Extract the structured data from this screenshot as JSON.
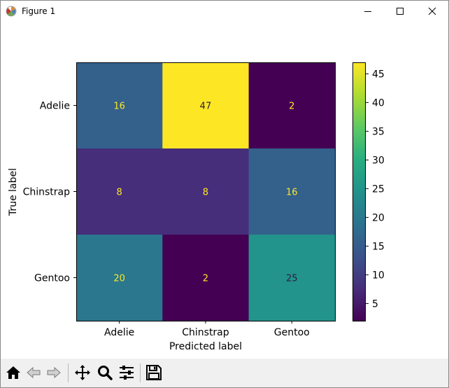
{
  "window": {
    "title": "Figure 1"
  },
  "titlebar_buttons": [
    "minimize-icon",
    "maximize-icon",
    "close-icon"
  ],
  "toolbar": {
    "buttons": [
      "home-icon",
      "back-icon",
      "forward-icon",
      "pan-icon",
      "zoom-icon",
      "configure-subplots-icon",
      "save-icon"
    ]
  },
  "chart_data": {
    "type": "heatmap",
    "title": "",
    "xlabel": "Predicted label",
    "ylabel": "True label",
    "x_categories": [
      "Adelie",
      "Chinstrap",
      "Gentoo"
    ],
    "y_categories": [
      "Adelie",
      "Chinstrap",
      "Gentoo"
    ],
    "matrix": [
      [
        16,
        47,
        2
      ],
      [
        8,
        8,
        16
      ],
      [
        20,
        2,
        25
      ]
    ],
    "colormap": "viridis",
    "colorbar": {
      "range": [
        2,
        47
      ],
      "ticks": [
        5,
        10,
        15,
        20,
        25,
        30,
        35,
        40,
        45
      ]
    },
    "grid": false
  }
}
